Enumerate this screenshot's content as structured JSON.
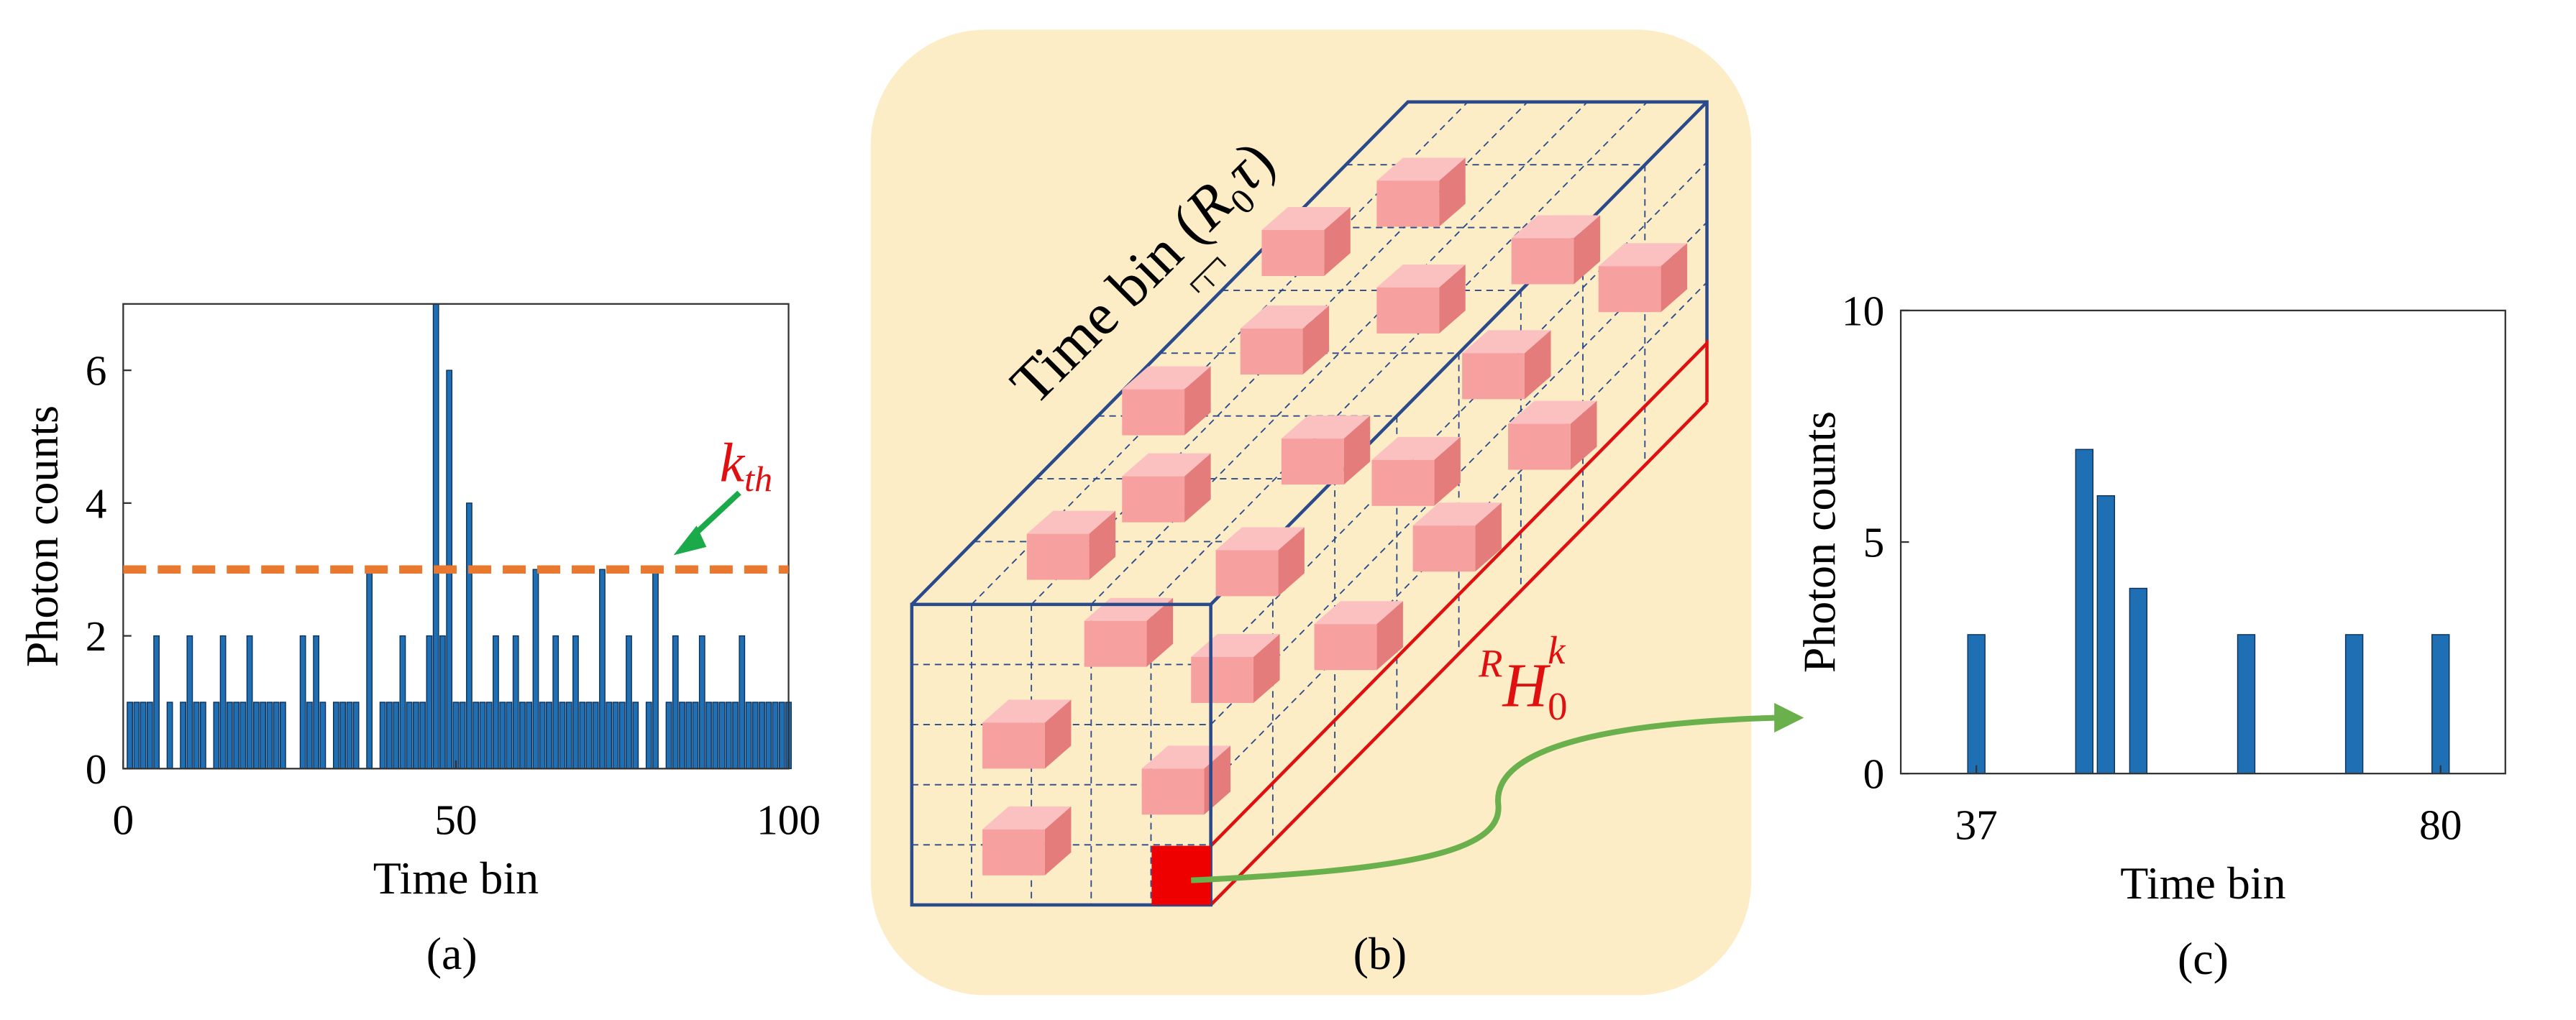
{
  "chart_data": [
    {
      "type": "bar",
      "caption": "(a)",
      "xlabel": "Time bin",
      "ylabel": "Photon counts",
      "color": "#1f6fb4",
      "x": [
        1,
        2,
        3,
        4,
        5,
        6,
        7,
        8,
        9,
        10,
        11,
        12,
        13,
        14,
        15,
        16,
        17,
        18,
        19,
        20,
        21,
        22,
        23,
        24,
        25,
        26,
        27,
        28,
        29,
        30,
        31,
        32,
        33,
        34,
        35,
        36,
        37,
        38,
        39,
        40,
        41,
        42,
        43,
        44,
        45,
        46,
        47,
        48,
        49,
        50,
        51,
        52,
        53,
        54,
        55,
        56,
        57,
        58,
        59,
        60,
        61,
        62,
        63,
        64,
        65,
        66,
        67,
        68,
        69,
        70,
        71,
        72,
        73,
        74,
        75,
        76,
        77,
        78,
        79,
        80,
        81,
        82,
        83,
        84,
        85,
        86,
        87,
        88,
        89,
        90,
        91,
        92,
        93,
        94,
        95,
        96,
        97,
        98,
        99,
        100
      ],
      "values": [
        1,
        1,
        1,
        1,
        2,
        0,
        1,
        0,
        1,
        2,
        1,
        1,
        0,
        1,
        2,
        1,
        1,
        1,
        2,
        1,
        1,
        1,
        1,
        1,
        0,
        0,
        2,
        1,
        2,
        1,
        0,
        1,
        1,
        1,
        1,
        0,
        3,
        0,
        1,
        1,
        1,
        2,
        1,
        1,
        1,
        2,
        7,
        2,
        6,
        1,
        1,
        4,
        1,
        1,
        1,
        2,
        1,
        1,
        2,
        1,
        1,
        3,
        1,
        1,
        2,
        1,
        1,
        2,
        1,
        1,
        1,
        3,
        1,
        1,
        1,
        2,
        1,
        0,
        1,
        3,
        0,
        1,
        2,
        1,
        1,
        1,
        2,
        1,
        1,
        1,
        1,
        1,
        2,
        1,
        1,
        1,
        1,
        1,
        1,
        1
      ],
      "xlim": [
        0,
        100
      ],
      "xticks": [
        0,
        50,
        100
      ],
      "ylim": [
        0,
        7
      ],
      "yticks": [
        0,
        2,
        4,
        6
      ],
      "threshold": {
        "value": 3,
        "label": "k",
        "label_sub": "th",
        "color": "#e8792e"
      }
    },
    {
      "type": "bar",
      "caption": "(c)",
      "xlabel": "Time bin",
      "ylabel": "Photon counts",
      "color": "#1f6fb4",
      "x": [
        37,
        47,
        49,
        52,
        62,
        72,
        80
      ],
      "values": [
        3,
        7,
        6,
        4,
        3,
        3,
        3
      ],
      "xlim": [
        30,
        86
      ],
      "xticks": [
        37,
        80
      ],
      "ylim": [
        0,
        10
      ],
      "yticks": [
        0,
        5,
        10
      ]
    }
  ],
  "diagram": {
    "caption": "(b)",
    "axis_label": "Time bin",
    "axis_param": {
      "open": "(",
      "var": "R",
      "sub": "0",
      "tau": "τ",
      "close": ")"
    },
    "cell_label": {
      "pre": "R",
      "main": "H",
      "sub": "0",
      "sup": "k"
    }
  }
}
